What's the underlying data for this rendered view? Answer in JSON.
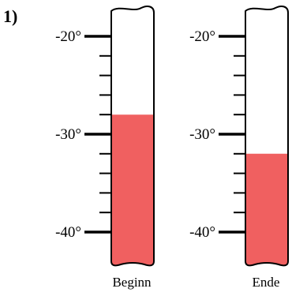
{
  "exercise": {
    "number": "1)"
  },
  "scale": {
    "unit": "°",
    "major_ticks": [
      -20,
      -30,
      -40
    ],
    "major_labels": [
      "-20°",
      "-30°",
      "-40°"
    ],
    "minor_step": 2
  },
  "colors": {
    "liquid": "#f06060",
    "outline": "#000000",
    "tube": "#ffffff"
  },
  "thermometers": [
    {
      "caption": "Beginn",
      "reading": -28
    },
    {
      "caption": "Ende",
      "reading": -32
    }
  ]
}
